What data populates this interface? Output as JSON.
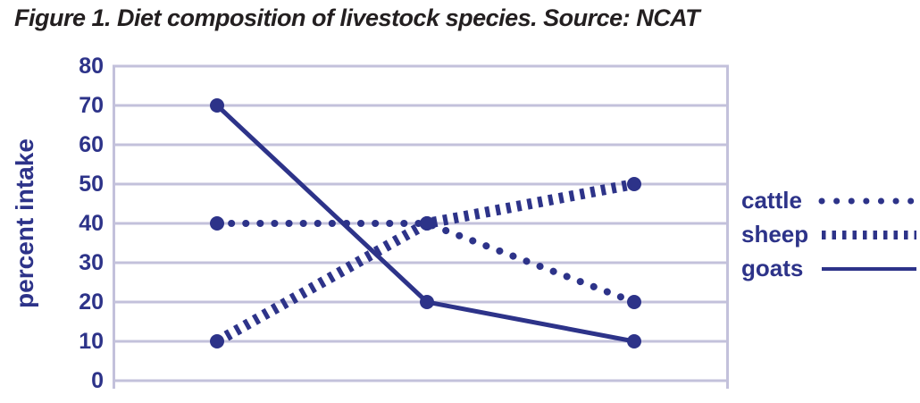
{
  "figure": {
    "title": "Figure 1. Diet composition of livestock species. Source: NCAT"
  },
  "colors": {
    "primary_navy": "#2d3389",
    "grid_lavender": "#c3c1db",
    "title_text": "#231f20",
    "background": "#ffffff"
  },
  "chart_data": {
    "type": "line",
    "title": "Figure 1. Diet composition of livestock species. Source: NCAT",
    "xlabel": "",
    "ylabel": "percent intake",
    "ylim": [
      0,
      80
    ],
    "y_ticks": [
      80,
      70,
      60,
      50,
      40,
      30,
      20,
      10,
      0
    ],
    "x_categories": [
      "",
      "",
      ""
    ],
    "grid": "horizontal",
    "legend_position": "right",
    "legend": [
      "cattle",
      "sheep",
      "goats"
    ],
    "series": [
      {
        "name": "cattle",
        "style": "round-dotted",
        "marker": "circle",
        "values": [
          40,
          40,
          20
        ]
      },
      {
        "name": "sheep",
        "style": "square-dashed",
        "marker": "circle",
        "values": [
          10,
          40,
          50
        ]
      },
      {
        "name": "goats",
        "style": "solid",
        "marker": "circle",
        "values": [
          70,
          20,
          10
        ]
      }
    ]
  }
}
